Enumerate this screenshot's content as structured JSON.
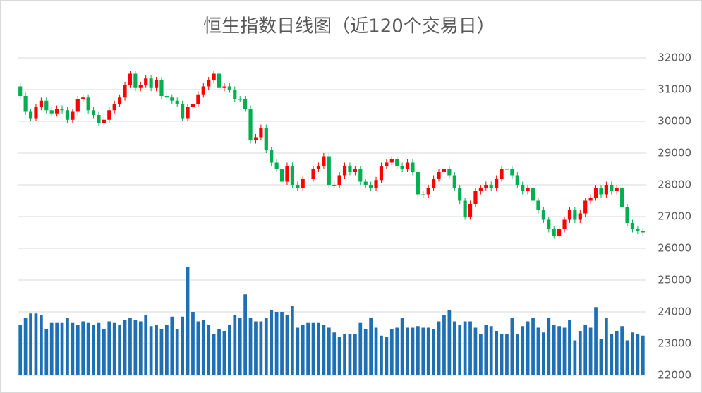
{
  "chart_data": {
    "type": "candlestick",
    "title": "恒生指数日线图（近120个交易日）",
    "ylim": [
      22000,
      32000
    ],
    "yticks": [
      22000,
      23000,
      24000,
      25000,
      26000,
      27000,
      28000,
      29000,
      30000,
      31000,
      32000
    ],
    "grid": true,
    "up_color": "#ff0000",
    "down_color": "#00b050",
    "volume_color": "#1f6fb5",
    "open": [
      31100,
      30800,
      30300,
      30100,
      30450,
      30650,
      30350,
      30250,
      30400,
      30350,
      30050,
      30300,
      30700,
      30750,
      30350,
      30200,
      29950,
      30050,
      30350,
      30550,
      30750,
      31150,
      31500,
      31050,
      31150,
      31350,
      31050,
      31300,
      30800,
      30750,
      30650,
      30550,
      30100,
      30450,
      30550,
      30850,
      31100,
      31300,
      31500,
      31050,
      31100,
      31000,
      30700,
      30700,
      30400,
      29400,
      29500,
      29800,
      29100,
      28700,
      28500,
      28100,
      28600,
      28000,
      27900,
      28200,
      28200,
      28500,
      28600,
      28900,
      28000,
      28000,
      28300,
      28600,
      28400,
      28500,
      28100,
      28000,
      27900,
      28150,
      28600,
      28700,
      28800,
      28600,
      28500,
      28700,
      28400,
      27700,
      27700,
      27900,
      28200,
      28400,
      28500,
      28300,
      27900,
      27500,
      27000,
      27400,
      27800,
      27900,
      28000,
      27900,
      28200,
      28500,
      28500,
      28300,
      28000,
      27800,
      27900,
      27500,
      27200,
      26900,
      26600,
      26400,
      26600,
      26900,
      27200,
      26900,
      27100,
      27500,
      27600,
      27900,
      27700,
      28000,
      27800,
      27900,
      27300,
      26800,
      26600,
      26550
    ],
    "high": [
      31200,
      30900,
      30400,
      30550,
      30750,
      30750,
      30450,
      30500,
      30500,
      30450,
      30400,
      30800,
      30850,
      30850,
      30450,
      30300,
      30150,
      30450,
      30650,
      30850,
      31250,
      31600,
      31600,
      31250,
      31450,
      31450,
      31400,
      31400,
      30900,
      30850,
      30750,
      30650,
      30550,
      30650,
      30950,
      31200,
      31400,
      31600,
      31600,
      31200,
      31200,
      31100,
      30800,
      30800,
      30500,
      29600,
      29900,
      29900,
      29200,
      28800,
      28600,
      28700,
      28700,
      28100,
      28300,
      28300,
      28600,
      28700,
      29000,
      29000,
      28100,
      28400,
      28700,
      28700,
      28600,
      28600,
      28200,
      28100,
      28250,
      28700,
      28800,
      28900,
      28900,
      28700,
      28800,
      28800,
      28500,
      27800,
      28000,
      28300,
      28500,
      28600,
      28600,
      28400,
      28000,
      27600,
      27500,
      27900,
      28000,
      28100,
      28100,
      28300,
      28600,
      28600,
      28600,
      28400,
      28100,
      28000,
      28000,
      27600,
      27300,
      27000,
      26700,
      26700,
      27000,
      27300,
      27300,
      27200,
      27600,
      27700,
      28000,
      28000,
      28100,
      28100,
      28000,
      28000,
      27400,
      26900,
      26700,
      26650
    ],
    "low": [
      30700,
      30200,
      30000,
      30000,
      30350,
      30250,
      30150,
      30150,
      30250,
      29950,
      29950,
      30200,
      30600,
      30250,
      30100,
      29850,
      29850,
      29950,
      30250,
      30450,
      30650,
      31050,
      30950,
      30950,
      31050,
      30950,
      30950,
      30700,
      30650,
      30550,
      30450,
      30000,
      30000,
      30350,
      30450,
      30750,
      31000,
      31200,
      30950,
      30950,
      30900,
      30600,
      30600,
      30300,
      29300,
      29300,
      29400,
      29000,
      28600,
      28400,
      28000,
      28000,
      27900,
      27800,
      27800,
      28100,
      28100,
      28400,
      28500,
      27900,
      27900,
      27900,
      28200,
      28300,
      28300,
      28000,
      27900,
      27800,
      27800,
      28050,
      28500,
      28600,
      28500,
      28400,
      28400,
      28300,
      27600,
      27600,
      27600,
      27800,
      28100,
      28300,
      28200,
      27800,
      27400,
      26900,
      26900,
      27300,
      27700,
      27800,
      27800,
      27800,
      28100,
      28400,
      28200,
      27900,
      27700,
      27700,
      27400,
      27100,
      26800,
      26500,
      26300,
      26300,
      26500,
      26800,
      26800,
      26800,
      27000,
      27400,
      27500,
      27600,
      27600,
      27700,
      27700,
      27200,
      26700,
      26500,
      26450,
      26400
    ],
    "close": [
      30800,
      30300,
      30100,
      30450,
      30650,
      30350,
      30250,
      30400,
      30350,
      30050,
      30300,
      30700,
      30750,
      30350,
      30200,
      29950,
      30050,
      30350,
      30550,
      30750,
      31150,
      31500,
      31050,
      31150,
      31350,
      31050,
      31300,
      30800,
      30750,
      30650,
      30550,
      30100,
      30450,
      30550,
      30850,
      31100,
      31300,
      31500,
      31050,
      31100,
      31000,
      30700,
      30700,
      30400,
      29400,
      29500,
      29800,
      29100,
      28700,
      28500,
      28100,
      28600,
      28000,
      27900,
      28200,
      28200,
      28500,
      28600,
      28900,
      28000,
      28000,
      28300,
      28600,
      28400,
      28500,
      28100,
      28000,
      27900,
      28150,
      28600,
      28700,
      28800,
      28600,
      28500,
      28700,
      28400,
      27700,
      27700,
      27900,
      28200,
      28400,
      28500,
      28300,
      27900,
      27500,
      27000,
      27400,
      27800,
      27900,
      28000,
      27900,
      28200,
      28500,
      28500,
      28300,
      28000,
      27800,
      27900,
      27500,
      27200,
      26900,
      26600,
      26400,
      26600,
      26900,
      27200,
      26900,
      27100,
      27500,
      27600,
      27900,
      27700,
      28000,
      27800,
      27900,
      27300,
      26800,
      26600,
      26550,
      26500
    ],
    "volume": [
      23600,
      23800,
      23950,
      23950,
      23900,
      23450,
      23650,
      23650,
      23650,
      23800,
      23650,
      23600,
      23700,
      23650,
      23600,
      23650,
      23450,
      23700,
      23650,
      23600,
      23750,
      23800,
      23750,
      23700,
      23900,
      23550,
      23600,
      23450,
      23600,
      23850,
      23450,
      23850,
      25400,
      24000,
      23700,
      23750,
      23600,
      23300,
      23450,
      23400,
      23600,
      23900,
      23800,
      24550,
      23800,
      23700,
      23700,
      23800,
      24050,
      24000,
      24000,
      23900,
      24200,
      23500,
      23600,
      23650,
      23650,
      23650,
      23600,
      23500,
      23350,
      23200,
      23300,
      23300,
      23300,
      23650,
      23450,
      23800,
      23500,
      23250,
      23200,
      23450,
      23500,
      23800,
      23500,
      23500,
      23550,
      23500,
      23500,
      23450,
      23700,
      23900,
      24050,
      23700,
      23600,
      23700,
      23700,
      23500,
      23300,
      23600,
      23550,
      23400,
      23300,
      23300,
      23800,
      23300,
      23550,
      23700,
      23800,
      23500,
      23350,
      23800,
      23600,
      23550,
      23500,
      23750,
      23100,
      23400,
      23600,
      23500,
      24150,
      23150,
      23800,
      23300,
      23400,
      23550,
      23100,
      23350,
      23300,
      23250
    ]
  }
}
